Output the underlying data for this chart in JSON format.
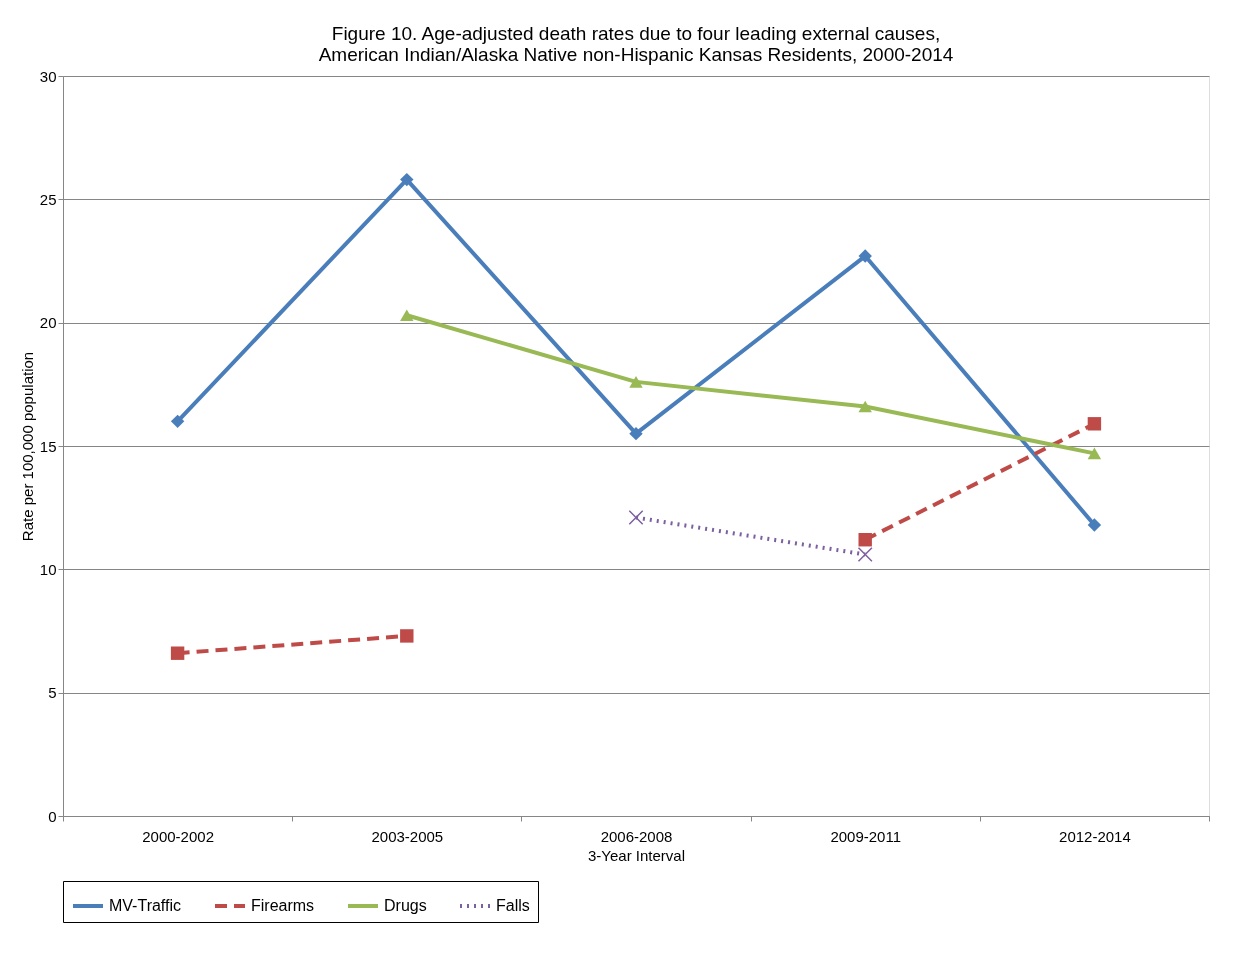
{
  "chart_data": {
    "type": "line",
    "title": "Figure 10. Age-adjusted death rates due to four leading external causes,\nAmerican Indian/Alaska Native non-Hispanic Kansas Residents, 2000-2014",
    "xlabel": "3-Year Interval",
    "ylabel": "Rate per 100,000 population",
    "categories": [
      "2000-2002",
      "2003-2005",
      "2006-2008",
      "2009-2011",
      "2012-2014"
    ],
    "series": [
      {
        "name": "MV-Traffic",
        "color": "#4a7ebb",
        "marker": "diamond",
        "line_style": "solid",
        "values": [
          16.0,
          25.8,
          15.5,
          22.7,
          11.8
        ]
      },
      {
        "name": "Firearms",
        "color": "#be4b48",
        "marker": "square",
        "line_style": "dashed",
        "values": [
          6.6,
          7.3,
          null,
          11.2,
          15.9
        ]
      },
      {
        "name": "Drugs",
        "color": "#98b954",
        "marker": "triangle",
        "line_style": "solid",
        "values": [
          null,
          20.3,
          17.6,
          16.6,
          14.7
        ]
      },
      {
        "name": "Falls",
        "color": "#7d60a0",
        "marker": "cross",
        "line_style": "dotted",
        "values": [
          null,
          null,
          12.1,
          10.6,
          null
        ]
      }
    ],
    "ylim": [
      0,
      30
    ],
    "yticks": [
      0,
      5,
      10,
      15,
      20,
      25,
      30
    ],
    "grid": "y",
    "legend": "bottom"
  }
}
